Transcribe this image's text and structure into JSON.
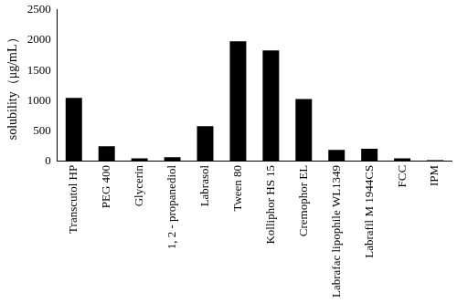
{
  "chart_data": {
    "type": "bar",
    "y_label": "solubility（μg/mL）",
    "categories": [
      "Transcutol HP",
      "PEG 400",
      "Glycerin",
      "1, 2 - propanediol",
      "Labrasol",
      "Tween 80",
      "Kolliphor HS 15",
      "Cremophor EL",
      "Labrafac lipophile WL1349",
      "Labrafil M 1944CS",
      "FCC",
      "IPM"
    ],
    "values": [
      1050,
      250,
      50,
      70,
      580,
      1980,
      1830,
      1030,
      190,
      210,
      50,
      20
    ],
    "color": "#000000",
    "ylim": [
      0,
      2500
    ],
    "yticks": [
      0,
      500,
      1000,
      1500,
      2000,
      2500
    ],
    "grid": false
  }
}
